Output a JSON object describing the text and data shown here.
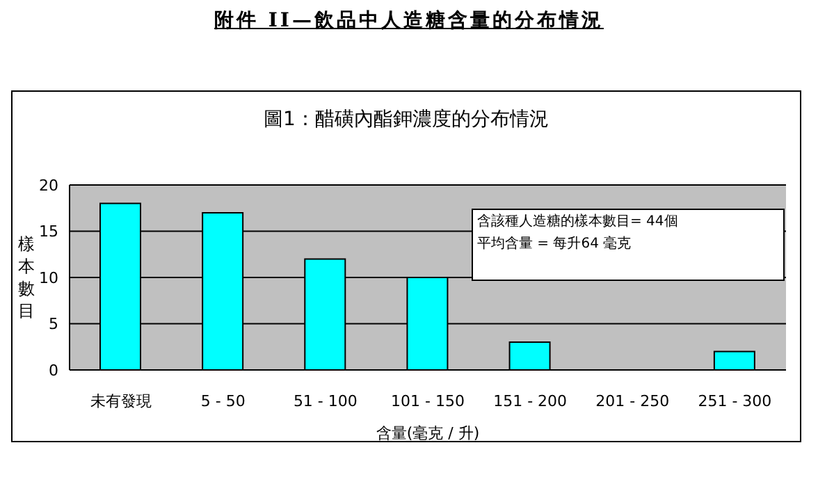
{
  "chart_data": {
    "type": "bar",
    "title": "附件 II—飲品中人造糖含量的分布情況",
    "subtitle": "圖1：醋磺內酯鉀濃度的分布情況",
    "xlabel": "含量(毫克 / 升)",
    "ylabel": "樣本數目",
    "categories": [
      "未有發現",
      "5 - 50",
      "51 - 100",
      "101 - 150",
      "151 - 200",
      "201 - 250",
      "251 - 300"
    ],
    "values": [
      18,
      17,
      12,
      10,
      3,
      0,
      2
    ],
    "color": "#00ffff",
    "ylim": [
      0,
      20
    ],
    "yticks": [
      0,
      5,
      10,
      15,
      20
    ],
    "grid": "y",
    "legend": false,
    "annotations": [
      "含該種人造糖的樣本數目= 44個",
      "平均含量 = 每升64 毫克"
    ]
  }
}
